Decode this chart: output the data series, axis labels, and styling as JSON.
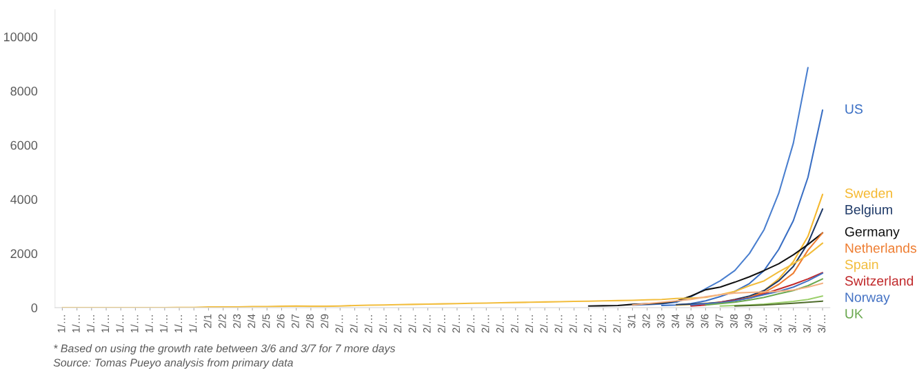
{
  "chart_data": {
    "type": "line",
    "categories": [
      "1/…",
      "1/…",
      "1/…",
      "1/…",
      "1/…",
      "1/…",
      "1/…",
      "1/…",
      "1/…",
      "1/…",
      "2/1",
      "2/2",
      "2/3",
      "2/4",
      "2/5",
      "2/6",
      "2/7",
      "2/8",
      "2/9",
      "2/…",
      "2/…",
      "2/…",
      "2/…",
      "2/…",
      "2/…",
      "2/…",
      "2/…",
      "2/…",
      "2/…",
      "2/…",
      "2/…",
      "2/…",
      "2/…",
      "2/…",
      "2/…",
      "2/…",
      "2/…",
      "2/…",
      "2/…",
      "3/1",
      "3/2",
      "3/3",
      "3/4",
      "3/5",
      "3/6",
      "3/7",
      "3/8",
      "3/9",
      "3/…",
      "3/…",
      "3/…",
      "3/…",
      "3/…"
    ],
    "series": [
      {
        "color": "#4a7fcf",
        "values": [
          null,
          null,
          null,
          null,
          null,
          null,
          null,
          null,
          null,
          null,
          null,
          null,
          null,
          null,
          null,
          null,
          null,
          null,
          null,
          null,
          null,
          null,
          null,
          null,
          null,
          null,
          null,
          null,
          null,
          null,
          null,
          null,
          null,
          null,
          null,
          null,
          null,
          null,
          null,
          90,
          110,
          140,
          200,
          400,
          700,
          990,
          1370,
          2000,
          2880,
          4220,
          6070,
          8860,
          null
        ]
      },
      {
        "name": "US",
        "color": "#3a6fc4",
        "values": [
          null,
          null,
          null,
          null,
          null,
          null,
          null,
          null,
          null,
          null,
          null,
          null,
          null,
          null,
          null,
          null,
          null,
          null,
          null,
          null,
          null,
          null,
          null,
          null,
          null,
          null,
          null,
          null,
          null,
          null,
          null,
          null,
          null,
          null,
          null,
          null,
          null,
          null,
          null,
          null,
          null,
          80,
          100,
          150,
          250,
          410,
          600,
          890,
          1370,
          2150,
          3210,
          4810,
          7290
        ]
      },
      {
        "name": "Sweden",
        "color": "#f5b82e",
        "values": [
          null,
          null,
          null,
          null,
          null,
          null,
          null,
          null,
          null,
          null,
          null,
          null,
          null,
          null,
          null,
          null,
          null,
          null,
          null,
          null,
          null,
          null,
          null,
          null,
          null,
          null,
          null,
          null,
          null,
          null,
          null,
          null,
          null,
          null,
          null,
          null,
          null,
          null,
          null,
          null,
          null,
          null,
          90,
          120,
          160,
          200,
          250,
          380,
          630,
          1060,
          1700,
          2630,
          4180
        ]
      },
      {
        "name": "Belgium",
        "color": "#1f3a68",
        "values": [
          null,
          null,
          null,
          null,
          null,
          null,
          null,
          null,
          null,
          null,
          null,
          null,
          null,
          null,
          null,
          null,
          null,
          null,
          null,
          null,
          null,
          null,
          null,
          null,
          null,
          null,
          null,
          null,
          null,
          null,
          null,
          null,
          null,
          null,
          null,
          null,
          null,
          null,
          null,
          null,
          null,
          null,
          110,
          130,
          150,
          200,
          300,
          430,
          630,
          990,
          1520,
          2380,
          3640
        ]
      },
      {
        "name": "Germany",
        "color": "#111111",
        "values": [
          null,
          null,
          null,
          null,
          null,
          null,
          null,
          null,
          null,
          null,
          null,
          null,
          null,
          null,
          null,
          null,
          null,
          null,
          null,
          null,
          null,
          null,
          null,
          null,
          null,
          null,
          null,
          null,
          null,
          null,
          null,
          null,
          null,
          null,
          null,
          null,
          60,
          70,
          80,
          120,
          140,
          170,
          240,
          430,
          660,
          760,
          940,
          1140,
          1370,
          1620,
          1950,
          2330,
          2760
        ]
      },
      {
        "name": "Netherlands",
        "color": "#ee7d31",
        "values": [
          null,
          null,
          null,
          null,
          null,
          null,
          null,
          null,
          null,
          null,
          null,
          null,
          null,
          null,
          null,
          null,
          null,
          null,
          null,
          null,
          null,
          null,
          null,
          null,
          null,
          null,
          null,
          null,
          null,
          null,
          null,
          null,
          null,
          null,
          null,
          null,
          null,
          null,
          null,
          null,
          null,
          null,
          null,
          80,
          120,
          180,
          260,
          380,
          560,
          860,
          1270,
          2120,
          2760
        ]
      },
      {
        "name": "Spain",
        "color": "#f2bd3c",
        "values": [
          0,
          0,
          0,
          0,
          0,
          0,
          0,
          0,
          10,
          10,
          30,
          30,
          30,
          40,
          40,
          50,
          60,
          50,
          50,
          60,
          80,
          90,
          100,
          110,
          120,
          130,
          140,
          150,
          160,
          170,
          180,
          190,
          200,
          210,
          220,
          230,
          240,
          250,
          260,
          270,
          290,
          300,
          340,
          350,
          380,
          480,
          600,
          810,
          990,
          1320,
          1620,
          1950,
          2380
        ]
      },
      {
        "name": "Switzerland",
        "color": "#c0282a",
        "values": [
          null,
          null,
          null,
          null,
          null,
          null,
          null,
          null,
          null,
          null,
          null,
          null,
          null,
          null,
          null,
          null,
          null,
          null,
          null,
          null,
          null,
          null,
          null,
          null,
          null,
          null,
          null,
          null,
          null,
          null,
          null,
          null,
          null,
          null,
          null,
          null,
          null,
          null,
          null,
          null,
          null,
          null,
          null,
          60,
          100,
          200,
          280,
          350,
          510,
          680,
          860,
          1060,
          1290
        ]
      },
      {
        "name": "Norway",
        "color": "#4472c4",
        "values": [
          null,
          null,
          null,
          null,
          null,
          null,
          null,
          null,
          null,
          null,
          null,
          null,
          null,
          null,
          null,
          null,
          null,
          null,
          null,
          null,
          null,
          null,
          null,
          null,
          null,
          null,
          null,
          null,
          null,
          null,
          null,
          null,
          null,
          null,
          null,
          null,
          null,
          null,
          null,
          null,
          null,
          null,
          null,
          100,
          150,
          180,
          250,
          350,
          480,
          600,
          760,
          990,
          1270
        ]
      },
      {
        "name": "UK",
        "color": "#6aa84f",
        "values": [
          null,
          null,
          null,
          null,
          null,
          null,
          null,
          null,
          null,
          null,
          null,
          null,
          null,
          null,
          null,
          null,
          null,
          null,
          null,
          null,
          null,
          null,
          null,
          null,
          null,
          null,
          null,
          null,
          null,
          null,
          null,
          null,
          null,
          null,
          null,
          null,
          null,
          null,
          null,
          null,
          null,
          null,
          null,
          null,
          100,
          150,
          200,
          280,
          380,
          510,
          630,
          810,
          1060
        ]
      },
      {
        "color": "#f4b183",
        "values": [
          null,
          null,
          null,
          null,
          null,
          null,
          null,
          null,
          null,
          null,
          null,
          null,
          null,
          null,
          null,
          null,
          null,
          null,
          null,
          null,
          null,
          null,
          null,
          null,
          null,
          null,
          null,
          null,
          null,
          null,
          null,
          null,
          null,
          null,
          null,
          null,
          null,
          null,
          null,
          100,
          150,
          200,
          250,
          300,
          400,
          480,
          540,
          560,
          580,
          600,
          650,
          760,
          900
        ]
      },
      {
        "color": "#9bcf6b",
        "values": [
          null,
          null,
          null,
          null,
          null,
          null,
          null,
          null,
          null,
          null,
          null,
          null,
          null,
          null,
          null,
          null,
          null,
          null,
          null,
          null,
          null,
          null,
          null,
          null,
          null,
          null,
          null,
          null,
          null,
          null,
          null,
          null,
          null,
          null,
          null,
          null,
          null,
          null,
          null,
          null,
          null,
          null,
          null,
          null,
          null,
          60,
          80,
          100,
          130,
          180,
          230,
          300,
          430
        ]
      },
      {
        "color": "#4e6b2a",
        "values": [
          null,
          null,
          null,
          null,
          null,
          null,
          null,
          null,
          null,
          null,
          null,
          null,
          null,
          null,
          null,
          null,
          null,
          null,
          null,
          null,
          null,
          null,
          null,
          null,
          null,
          null,
          null,
          null,
          null,
          null,
          null,
          null,
          null,
          null,
          null,
          null,
          null,
          null,
          null,
          null,
          null,
          null,
          null,
          null,
          null,
          null,
          60,
          80,
          100,
          130,
          160,
          200,
          240
        ]
      }
    ],
    "ylim": [
      0,
      11000
    ],
    "yticks": [
      0,
      2000,
      4000,
      6000,
      8000,
      10000
    ],
    "grid": false,
    "legend": false,
    "annotations": [
      "* Based on using the growth rate between 3/6 and 3/7 for 7 more days",
      "Source: Tomas Pueyo analysis from primary data"
    ]
  }
}
